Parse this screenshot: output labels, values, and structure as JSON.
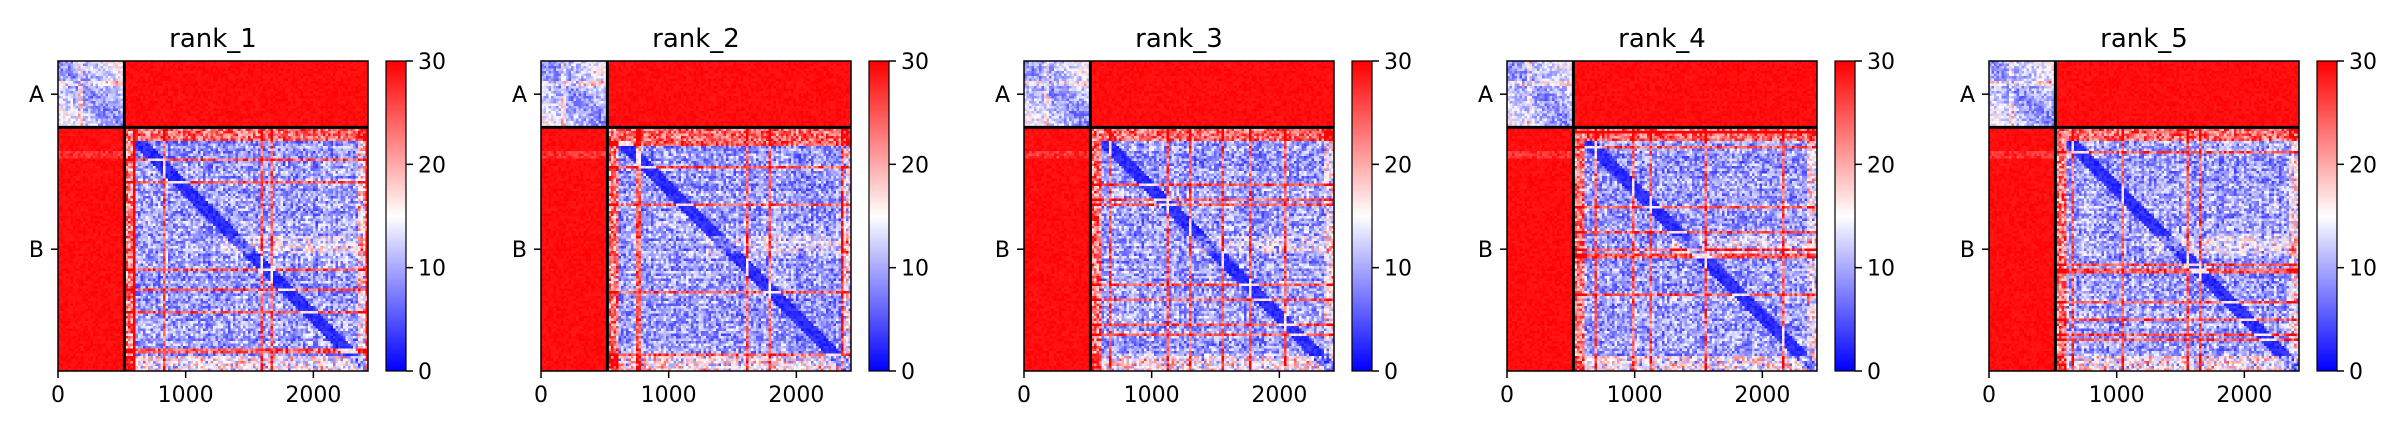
{
  "chart_data": {
    "type": "heatmap",
    "description_free": true,
    "n_residues": 2428,
    "chain_boundary": 520,
    "chains": [
      {
        "label": "A",
        "start": 0,
        "end": 520
      },
      {
        "label": "B",
        "start": 520,
        "end": 2428
      }
    ],
    "xlim": [
      0,
      2428
    ],
    "xticks": [
      0,
      1000,
      2000
    ],
    "colorbar": {
      "min": 0,
      "max": 30,
      "ticks": [
        0,
        10,
        20,
        30
      ],
      "cmap": "bwr"
    },
    "colors": {
      "low": "#0000ff",
      "mid": "#ffffff",
      "high": "#ff0000",
      "separator": "#000000"
    },
    "panels": [
      {
        "title": "rank_1",
        "seed": 11
      },
      {
        "title": "rank_2",
        "seed": 23
      },
      {
        "title": "rank_3",
        "seed": 37
      },
      {
        "title": "rank_4",
        "seed": 41
      },
      {
        "title": "rank_5",
        "seed": 53
      }
    ]
  }
}
